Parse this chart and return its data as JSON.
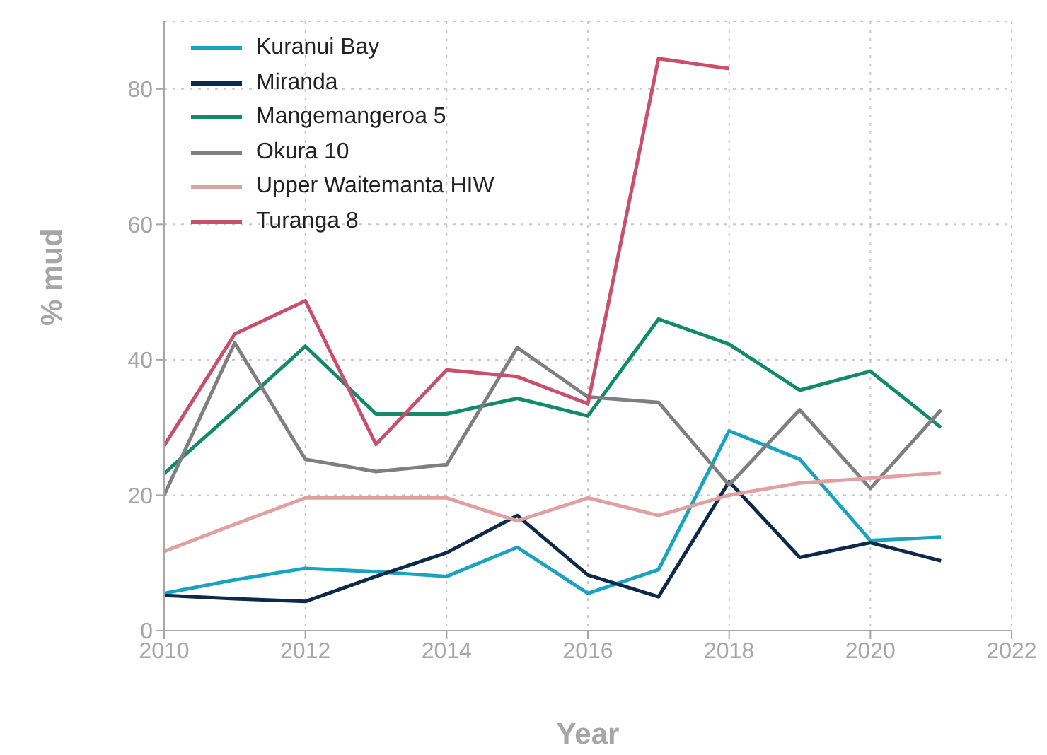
{
  "chart_data": {
    "type": "line",
    "xlabel": "Year",
    "ylabel": "% mud",
    "x": [
      2010,
      2011,
      2012,
      2013,
      2014,
      2015,
      2016,
      2017,
      2018,
      2019,
      2020,
      2021
    ],
    "xlim": [
      2010,
      2022
    ],
    "xticks": [
      2010,
      2012,
      2014,
      2016,
      2018,
      2020,
      2022
    ],
    "ylim": [
      0,
      90
    ],
    "yticks": [
      0,
      20,
      40,
      60,
      80
    ],
    "grid": true,
    "legend": "top left",
    "marker": "none",
    "line_style": "solid",
    "series": [
      {
        "name": "Kuranui Bay",
        "color": "#1aa3c0",
        "values": [
          5.5,
          7.5,
          9.2,
          8.7,
          8.0,
          12.3,
          5.5,
          9.0,
          29.5,
          25.3,
          13.3,
          13.8
        ]
      },
      {
        "name": "Miranda",
        "color": "#0d2a4a",
        "values": [
          5.2,
          4.7,
          4.3,
          8.0,
          11.5,
          17.0,
          8.2,
          5.0,
          22.0,
          10.8,
          13.0,
          10.3
        ]
      },
      {
        "name": "Mangemangeroa 5",
        "color": "#138a6a",
        "values": [
          23.2,
          32.5,
          42.0,
          32.0,
          32.0,
          34.3,
          31.7,
          46.0,
          42.3,
          35.5,
          38.3,
          30.0
        ]
      },
      {
        "name": "Okura 10",
        "color": "#7f7f7f",
        "values": [
          20.0,
          42.5,
          25.3,
          23.5,
          24.5,
          41.8,
          34.5,
          33.7,
          21.5,
          32.6,
          21.0,
          32.6
        ]
      },
      {
        "name": "Upper Waitemanta HIW",
        "color": "#e0a0a0",
        "values": [
          11.7,
          15.7,
          19.6,
          19.6,
          19.6,
          16.2,
          19.6,
          17.0,
          20.0,
          21.8,
          22.5,
          23.3
        ]
      },
      {
        "name": "Turanga 8",
        "color": "#c8506a",
        "values": [
          27.3,
          43.8,
          48.7,
          27.5,
          38.5,
          37.5,
          33.5,
          84.5,
          83.0,
          null,
          null,
          null
        ]
      }
    ]
  }
}
